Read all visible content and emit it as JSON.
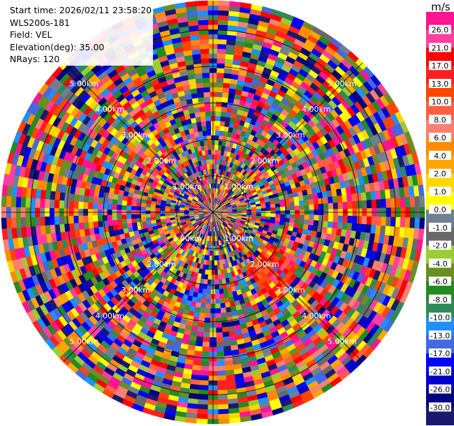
{
  "header": {
    "start_time": "Start time: 2026/02/11 23:58:20",
    "instrument": "WLS200s-181",
    "field": "Field: VEL",
    "elevation": "Elevation(deg): 35.00",
    "nrays": "NRays: 120"
  },
  "colorbar": {
    "unit": "m/s",
    "labels": [
      "26.0",
      "21.0",
      "17.0",
      "13.0",
      "10.0",
      "8.0",
      "6.0",
      "4.0",
      "2.0",
      "1.0",
      "0.0",
      "-1.0",
      "-2.0",
      "-4.0",
      "-6.0",
      "-8.0",
      "-10.0",
      "-13.0",
      "-17.0",
      "-21.0",
      "-26.0",
      "-30.0"
    ],
    "colors": [
      "#ff1493",
      "#ff3f9f",
      "#ff0000",
      "#ff2020",
      "#ff4500",
      "#ff5f3f",
      "#fa8072",
      "#ff8c00",
      "#ffa500",
      "#ffd700",
      "#ffff00",
      "#708090",
      "#696969",
      "#9acd32",
      "#6b8e23",
      "#228b22",
      "#2e8b57",
      "#1e90ff",
      "#4169e1",
      "#0000ff",
      "#0000cd",
      "#000080",
      "#191970"
    ]
  },
  "chart_data": {
    "type": "heatmap",
    "subtype": "radar-ppi",
    "field": "VEL",
    "unit": "m/s",
    "nrays": 120,
    "elevation_deg": 35.0,
    "range_rings_km": [
      1,
      2,
      3,
      4,
      5
    ],
    "ring_label_text": [
      "1.00km",
      "2.00km",
      "3.00km",
      "4.00km",
      "5.00km"
    ],
    "colorbar_range": [
      -30.0,
      26.0
    ],
    "ring_colors": [
      "#000000",
      "#ffffff"
    ],
    "noise_seed": 181
  }
}
